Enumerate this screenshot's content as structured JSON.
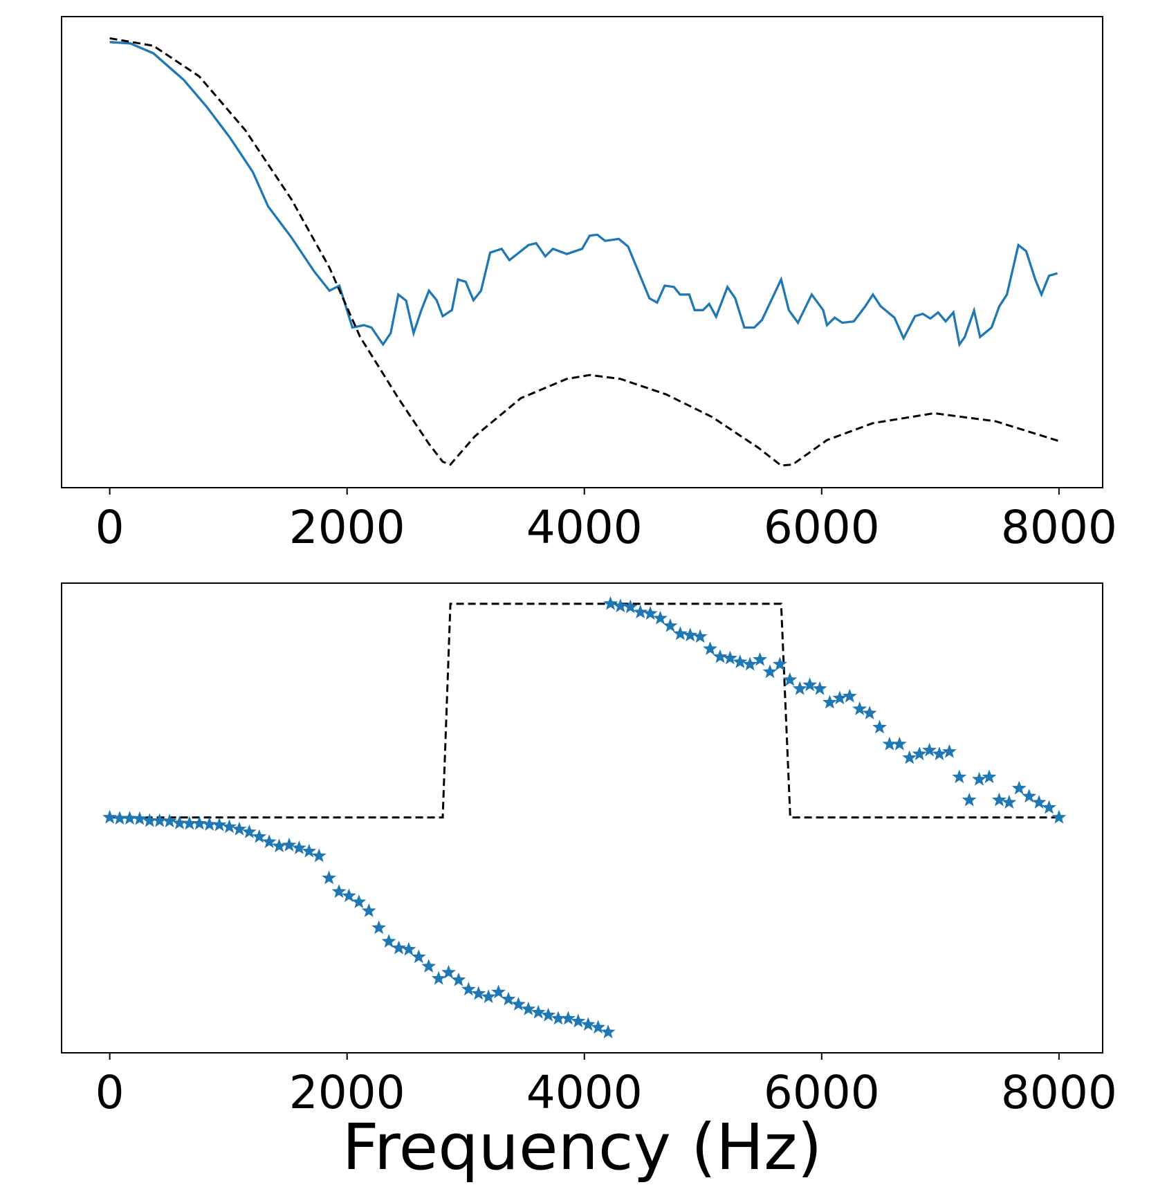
{
  "chart_data": [
    {
      "type": "line",
      "xlim": [
        -406,
        8368
      ],
      "xticks": [
        0,
        2000,
        4000,
        6000,
        8000
      ],
      "ylim": [
        0,
        100
      ],
      "series": [
        {
          "color": "#1f77b4",
          "dash": false,
          "x": [
            0,
            174,
            368,
            626,
            819,
            1013,
            1206,
            1335,
            1529,
            1723,
            1852,
            1935,
            2045,
            2142,
            2206,
            2303,
            2368,
            2432,
            2497,
            2561,
            2626,
            2690,
            2755,
            2806,
            2884,
            2935,
            3000,
            3065,
            3129,
            3206,
            3303,
            3368,
            3529,
            3594,
            3671,
            3735,
            3852,
            3981,
            4045,
            4110,
            4174,
            4290,
            4368,
            4548,
            4613,
            4677,
            4755,
            4806,
            4884,
            4929,
            5000,
            5052,
            5110,
            5206,
            5271,
            5348,
            5432,
            5497,
            5658,
            5723,
            5800,
            5916,
            6013,
            6045,
            6110,
            6174,
            6271,
            6368,
            6432,
            6497,
            6613,
            6690,
            6787,
            6852,
            6916,
            6981,
            7045,
            7110,
            7161,
            7206,
            7284,
            7335,
            7432,
            7497,
            7561,
            7658,
            7723,
            7800,
            7852,
            7916,
            7987
          ],
          "values": [
            94.6,
            94.3,
            92.2,
            86.5,
            80.8,
            74.3,
            67.0,
            59.7,
            53.2,
            45.9,
            41.8,
            42.9,
            34.0,
            34.5,
            34.0,
            30.4,
            32.8,
            41.0,
            39.7,
            32.8,
            37.7,
            41.8,
            39.8,
            36.4,
            37.7,
            44.2,
            43.7,
            39.8,
            41.8,
            49.9,
            50.7,
            48.3,
            51.5,
            51.9,
            49.1,
            50.7,
            49.6,
            50.7,
            53.5,
            53.7,
            52.4,
            52.8,
            51.2,
            40.2,
            39.3,
            42.9,
            42.6,
            41.0,
            41.0,
            37.7,
            37.7,
            39.0,
            36.3,
            42.6,
            40.2,
            34.0,
            34.0,
            35.6,
            44.2,
            37.7,
            35.0,
            41.0,
            37.7,
            34.5,
            36.1,
            35.0,
            35.3,
            38.5,
            41.0,
            38.5,
            36.1,
            31.7,
            36.4,
            36.9,
            35.9,
            37.2,
            35.3,
            37.2,
            30.4,
            32.0,
            37.6,
            32.0,
            34.0,
            38.5,
            41.0,
            51.5,
            50.2,
            44.2,
            41.0,
            45.0,
            45.5
          ]
        },
        {
          "color": "#000000",
          "dash": true,
          "x": [
            0,
            368,
            755,
            1142,
            1529,
            1852,
            2110,
            2432,
            2690,
            2806,
            2871,
            3077,
            3465,
            3852,
            4045,
            4303,
            4690,
            5077,
            5465,
            5658,
            5755,
            6045,
            6432,
            6948,
            7465,
            8000
          ],
          "values": [
            95.4,
            93.8,
            87.3,
            75.9,
            61.3,
            46.7,
            32.0,
            19.0,
            9.3,
            5.5,
            4.9,
            10.9,
            19.0,
            23.1,
            23.9,
            23.1,
            19.8,
            15.0,
            8.5,
            4.7,
            4.9,
            10.1,
            13.7,
            15.8,
            14.1,
            9.9
          ]
        }
      ]
    },
    {
      "type": "scatter",
      "xlabel": "Frequency (Hz)",
      "xlim": [
        -406,
        8368
      ],
      "xticks": [
        0,
        2000,
        4000,
        6000,
        8000
      ],
      "ylim": [
        0,
        100
      ],
      "series": [
        {
          "color": "#000000",
          "dash": true,
          "marker": "line",
          "x": [
            0,
            2806,
            2871,
            5658,
            5735,
            8000
          ],
          "values": [
            50.1,
            50.1,
            95.6,
            95.6,
            50.1,
            50.1
          ]
        },
        {
          "color": "#1f77b4",
          "dash": false,
          "marker": "star",
          "x": [
            0,
            84,
            168,
            252,
            336,
            420,
            504,
            588,
            672,
            756,
            840,
            924,
            1008,
            1092,
            1176,
            1260,
            1344,
            1428,
            1512,
            1596,
            1680,
            1764,
            1848,
            1932,
            2016,
            2100,
            2184,
            2268,
            2352,
            2436,
            2520,
            2604,
            2688,
            2772,
            2856,
            2940,
            3024,
            3108,
            3192,
            3276,
            3360,
            3444,
            3528,
            3612,
            3696,
            3780,
            3864,
            3948,
            4032,
            4116,
            4200,
            4220,
            4304,
            4388,
            4472,
            4556,
            4640,
            4724,
            4808,
            4892,
            4976,
            5060,
            5144,
            5228,
            5312,
            5396,
            5480,
            5564,
            5648,
            5732,
            5816,
            5900,
            5984,
            6068,
            6152,
            6236,
            6320,
            6404,
            6488,
            6572,
            6656,
            6740,
            6824,
            6908,
            6992,
            7076,
            7160,
            7244,
            7328,
            7412,
            7496,
            7580,
            7664,
            7748,
            7832,
            7916,
            8000
          ],
          "values": [
            50.1,
            49.9,
            49.9,
            49.8,
            49.4,
            49.4,
            49.3,
            48.9,
            48.8,
            48.8,
            48.6,
            48.5,
            48.1,
            47.6,
            47.0,
            46.0,
            44.9,
            44.0,
            44.2,
            43.6,
            42.9,
            41.9,
            37.2,
            34.3,
            33.4,
            32.1,
            30.2,
            26.6,
            23.7,
            22.3,
            22.0,
            20.4,
            18.4,
            15.8,
            17.1,
            15.5,
            13.5,
            12.6,
            11.9,
            12.9,
            11.4,
            10.3,
            9.3,
            8.6,
            8.0,
            7.3,
            7.3,
            6.7,
            6.0,
            5.4,
            4.4,
            95.6,
            95.1,
            94.9,
            93.8,
            93.5,
            92.5,
            90.9,
            89.2,
            88.9,
            88.6,
            86.0,
            84.3,
            84.0,
            83.2,
            82.7,
            83.7,
            81.1,
            82.7,
            79.4,
            77.5,
            78.3,
            77.5,
            74.6,
            75.5,
            75.9,
            73.2,
            72.3,
            69.3,
            65.7,
            65.7,
            62.8,
            63.6,
            64.4,
            63.6,
            64.1,
            58.7,
            53.8,
            58.2,
            58.7,
            53.8,
            53.3,
            56.3,
            54.6,
            53.3,
            52.2,
            50.1
          ]
        }
      ]
    }
  ]
}
